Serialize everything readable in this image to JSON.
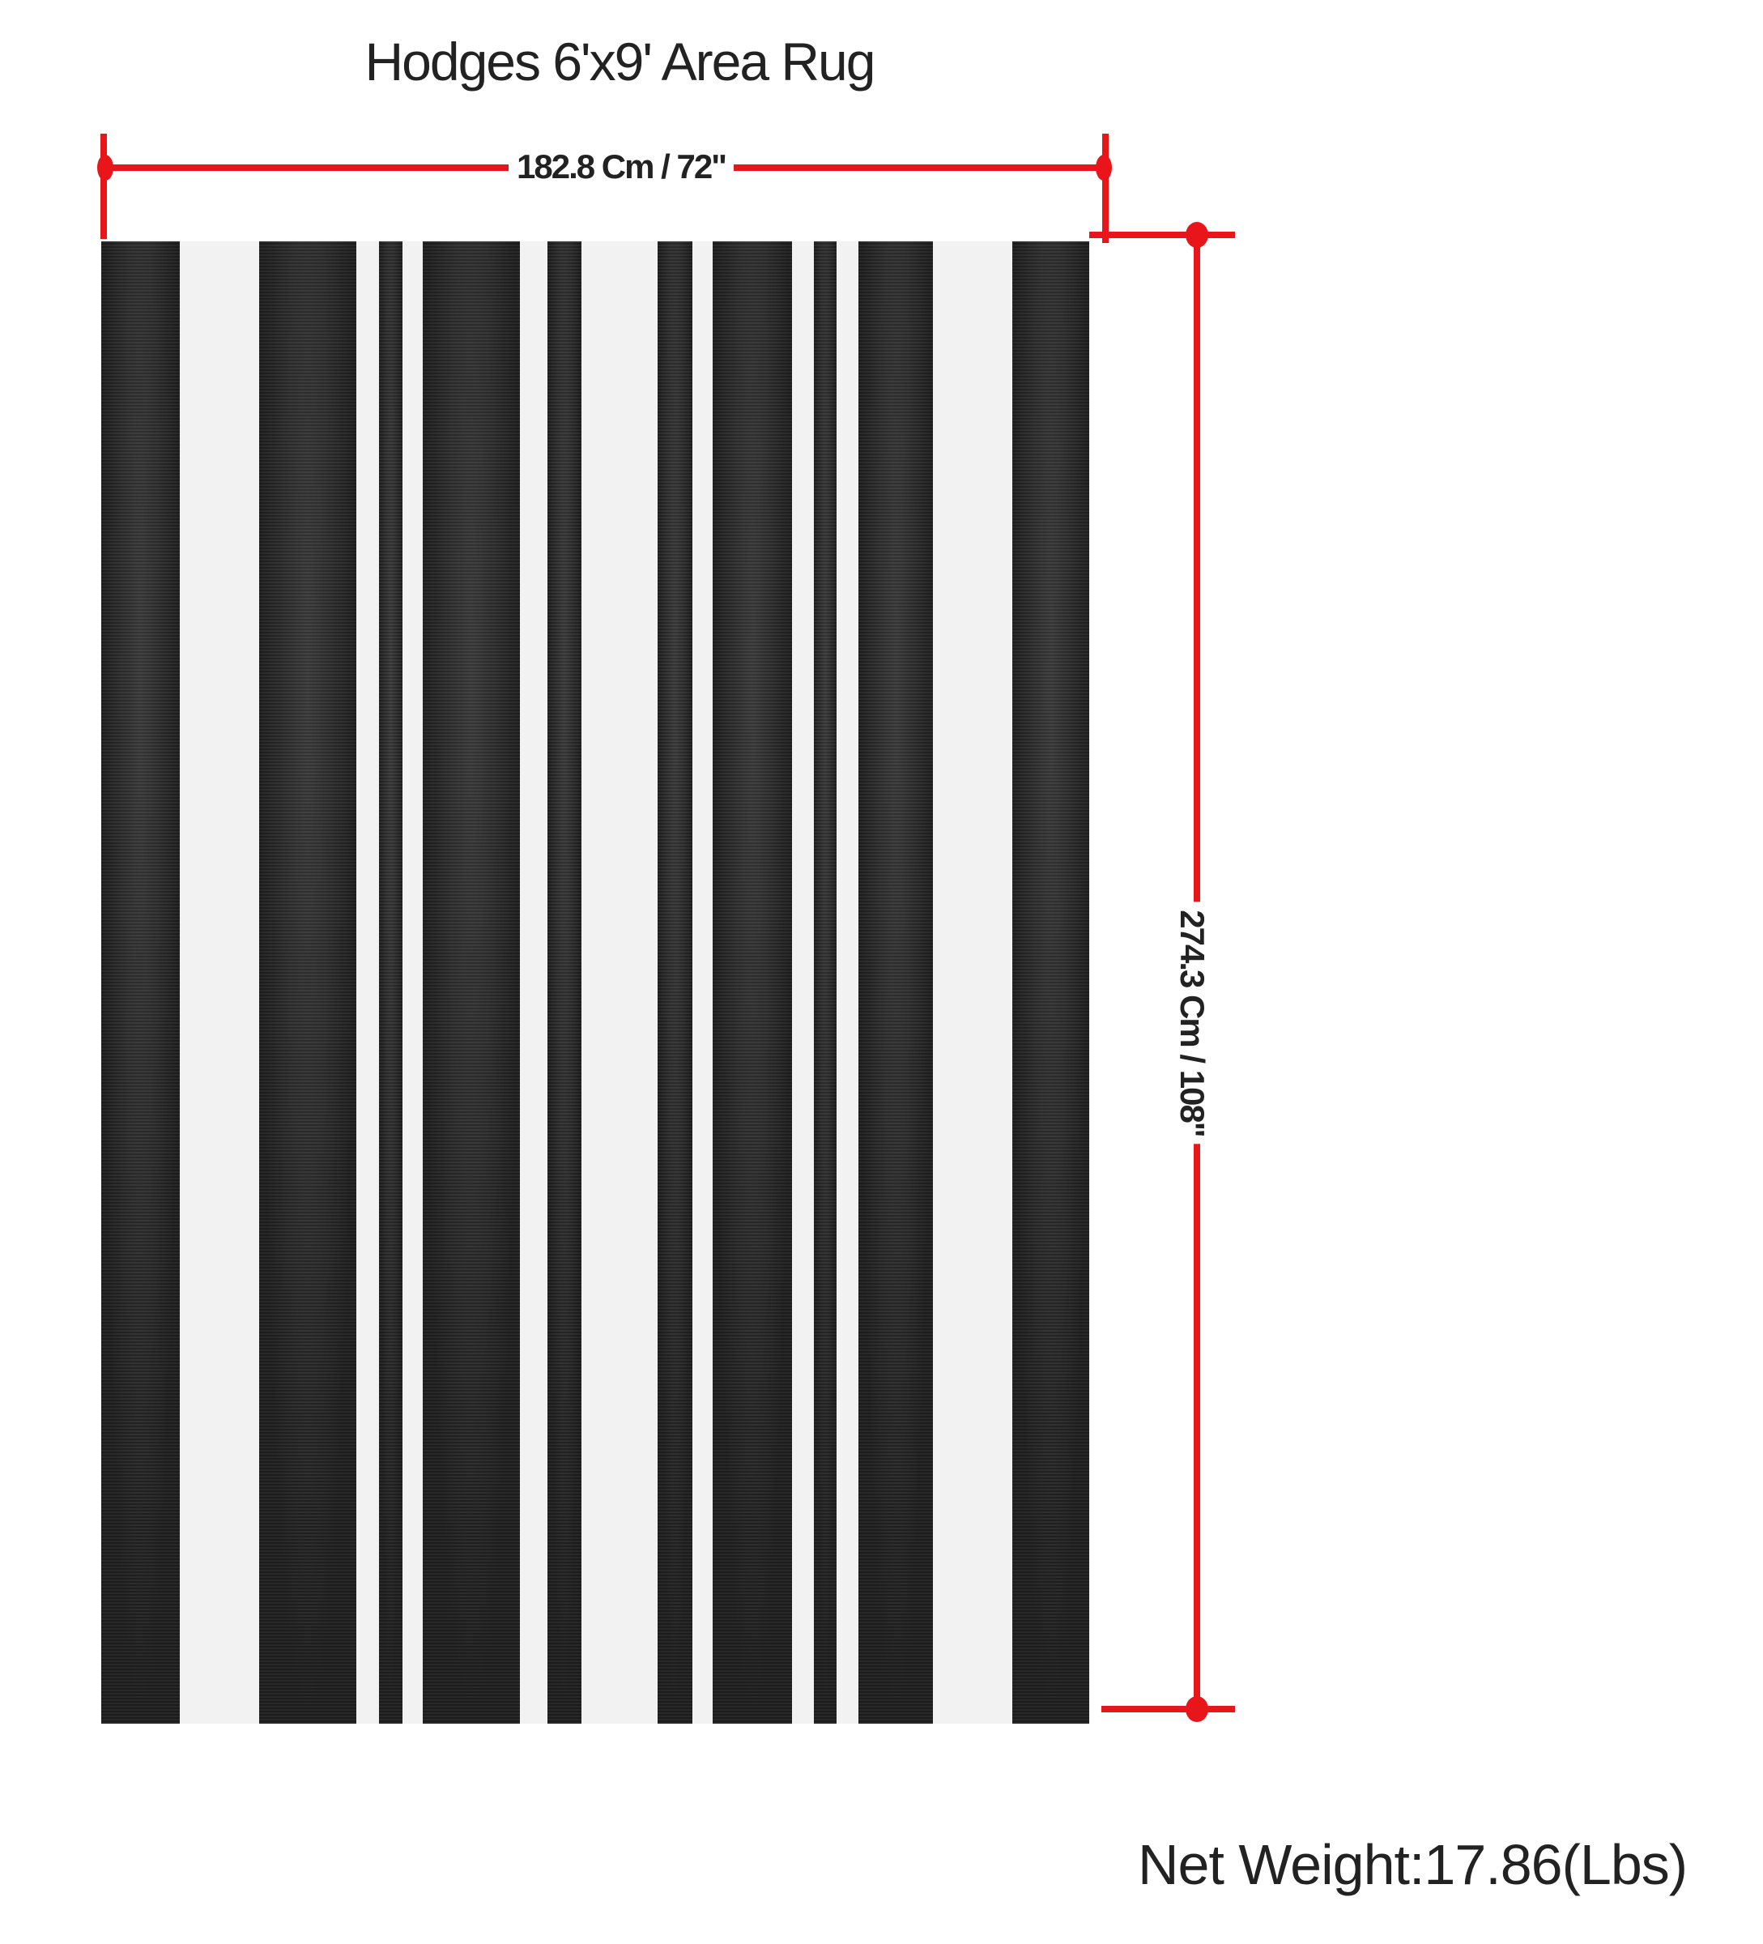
{
  "title": "Hodges 6'x9' Area Rug",
  "dimensions": {
    "width_label": "182.8 Cm / 72\"",
    "height_label": "274.3 Cm / 108\""
  },
  "net_weight": "Net Weight:17.86(Lbs)",
  "colors": {
    "dimension_lines": "#e8161b",
    "rug_dark": "#262626",
    "rug_light": "#f0f0f0"
  }
}
